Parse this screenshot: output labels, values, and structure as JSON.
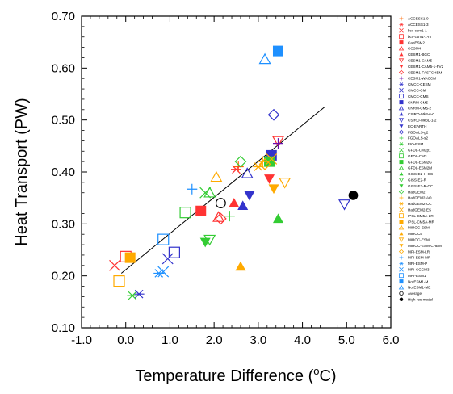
{
  "chart_data": {
    "type": "scatter",
    "xlabel": "Temperature Difference (",
    "xlabel_unit": "o",
    "xlabel_suffix": "C)",
    "ylabel": "Heat Transport (PW)",
    "xlim": [
      -1.0,
      6.0
    ],
    "ylim": [
      0.1,
      0.7
    ],
    "x_ticks": [
      -1.0,
      0.0,
      1.0,
      2.0,
      3.0,
      4.0,
      5.0,
      6.0
    ],
    "x_tick_labels": [
      "-1.0",
      "0.0",
      "1.0",
      "2.0",
      "3.0",
      "4.0",
      "5.0",
      "6.0"
    ],
    "y_ticks": [
      0.1,
      0.2,
      0.3,
      0.4,
      0.5,
      0.6,
      0.7
    ],
    "y_tick_labels": [
      "0.10",
      "0.20",
      "0.30",
      "0.40",
      "0.50",
      "0.60",
      "0.70"
    ],
    "grid": false,
    "legend_position": "right",
    "fit_line": {
      "x": [
        -0.1,
        4.5
      ],
      "y": [
        0.205,
        0.525
      ],
      "color": "#000000"
    },
    "series": [
      {
        "name": "ACCESS1-0",
        "marker": "plus",
        "color": "#ff6600",
        "x": 2.55,
        "y": 0.41
      },
      {
        "name": "ACCESS1-3",
        "marker": "asterisk",
        "color": "#ff3333",
        "x": 2.5,
        "y": 0.405
      },
      {
        "name": "bcc-csm1-1",
        "marker": "x",
        "color": "#ff3333",
        "x": -0.25,
        "y": 0.22
      },
      {
        "name": "bcc-csm1-1-m",
        "marker": "square-open",
        "color": "#ff3333",
        "x": 0.0,
        "y": 0.237
      },
      {
        "name": "CanESM2",
        "marker": "square-filled",
        "color": "#ff3333",
        "x": 1.7,
        "y": 0.325
      },
      {
        "name": "CCSM4",
        "marker": "triangle-up-open",
        "color": "#ff3333",
        "x": 2.1,
        "y": 0.313
      },
      {
        "name": "CESM1-BGC",
        "marker": "triangle-up-filled",
        "color": "#ff3333",
        "x": 2.45,
        "y": 0.34
      },
      {
        "name": "CESM1-CAM5",
        "marker": "triangle-down-open",
        "color": "#ff3333",
        "x": 3.45,
        "y": 0.46
      },
      {
        "name": "CESM1-CAM5-1-FV2",
        "marker": "triangle-down-filled",
        "color": "#ff3333",
        "x": 3.25,
        "y": 0.387
      },
      {
        "name": "CESM1-FASTCHEM",
        "marker": "diamond-open",
        "color": "#ff3333",
        "x": 2.15,
        "y": 0.31
      },
      {
        "name": "CESM1-WACCM",
        "marker": "plus",
        "color": "#6a0dad",
        "x": 3.45,
        "y": 0.455
      },
      {
        "name": "CMCC-CESM",
        "marker": "asterisk",
        "color": "#3333cc",
        "x": 0.3,
        "y": 0.165
      },
      {
        "name": "CMCC-CM",
        "marker": "x",
        "color": "#3333cc",
        "x": 0.95,
        "y": 0.233
      },
      {
        "name": "CMCC-CMS",
        "marker": "square-open",
        "color": "#3333cc",
        "x": 1.1,
        "y": 0.245
      },
      {
        "name": "CNRM-CM5",
        "marker": "square-filled",
        "color": "#3333cc",
        "x": 3.3,
        "y": 0.432
      },
      {
        "name": "CNRM-CM5-2",
        "marker": "triangle-up-open",
        "color": "#3333cc",
        "x": 2.75,
        "y": 0.397
      },
      {
        "name": "CSIRO-Mk3-6-0",
        "marker": "triangle-up-filled",
        "color": "#3333cc",
        "x": 2.65,
        "y": 0.335
      },
      {
        "name": "CSIRO-Mk3L-1-2",
        "marker": "triangle-down-open",
        "color": "#3333cc",
        "x": 4.95,
        "y": 0.338
      },
      {
        "name": "EC-EARTH",
        "marker": "triangle-down-filled",
        "color": "#3333cc",
        "x": 2.8,
        "y": 0.355
      },
      {
        "name": "FGOALS-g2",
        "marker": "diamond-open",
        "color": "#3333cc",
        "x": 3.35,
        "y": 0.51
      },
      {
        "name": "FGOALS-s2",
        "marker": "plus",
        "color": "#33cc33",
        "x": 2.35,
        "y": 0.315
      },
      {
        "name": "FIO-ESM",
        "marker": "asterisk",
        "color": "#33cc33",
        "x": 0.15,
        "y": 0.162
      },
      {
        "name": "GFDL-CM2p1",
        "marker": "x",
        "color": "#33cc33",
        "x": 1.8,
        "y": 0.36
      },
      {
        "name": "GFDL-CM3",
        "marker": "square-open",
        "color": "#33cc33",
        "x": 1.35,
        "y": 0.322
      },
      {
        "name": "GFDL-ESM2G",
        "marker": "square-filled",
        "color": "#33cc33",
        "x": 3.25,
        "y": 0.42
      },
      {
        "name": "GFDL-ESM2M",
        "marker": "triangle-up-open",
        "color": "#33cc33",
        "x": 1.9,
        "y": 0.36
      },
      {
        "name": "GISS-E2-H-CC",
        "marker": "triangle-up-filled",
        "color": "#33cc33",
        "x": 3.45,
        "y": 0.31
      },
      {
        "name": "GISS-E2-R",
        "marker": "triangle-down-open",
        "color": "#33cc33",
        "x": 1.9,
        "y": 0.27
      },
      {
        "name": "GISS-E2-R-CC",
        "marker": "triangle-down-filled",
        "color": "#33cc33",
        "x": 1.8,
        "y": 0.265
      },
      {
        "name": "HadGEM2",
        "marker": "diamond-open",
        "color": "#33cc33",
        "x": 2.6,
        "y": 0.42
      },
      {
        "name": "HadGEM2-AO",
        "marker": "plus",
        "color": "#ffaa00",
        "x": 3.1,
        "y": 0.42
      },
      {
        "name": "HadGEM2-CC",
        "marker": "asterisk",
        "color": "#ffaa00",
        "x": 3.0,
        "y": 0.41
      },
      {
        "name": "HadGEM2-ES",
        "marker": "x",
        "color": "#ffaa00",
        "x": 3.3,
        "y": 0.425
      },
      {
        "name": "IPSL-CM5A-LR",
        "marker": "square-open",
        "color": "#ffaa00",
        "x": -0.15,
        "y": 0.19
      },
      {
        "name": "IPSL-CM5A-MR",
        "marker": "square-filled",
        "color": "#ffaa00",
        "x": 0.1,
        "y": 0.235
      },
      {
        "name": "MIROC-ESM",
        "marker": "triangle-up-open",
        "color": "#ffaa00",
        "x": 2.05,
        "y": 0.39
      },
      {
        "name": "MIROC5",
        "marker": "triangle-up-filled",
        "color": "#ffaa00",
        "x": 2.6,
        "y": 0.218
      },
      {
        "name": "MIROC-ESM",
        "marker": "triangle-down-open",
        "color": "#ffaa00",
        "x": 3.6,
        "y": 0.38
      },
      {
        "name": "MIROC-ESM-CHEM",
        "marker": "triangle-down-filled",
        "color": "#ffaa00",
        "x": 3.35,
        "y": 0.368
      },
      {
        "name": "MPI-ESM-LR",
        "marker": "diamond-open",
        "color": "#ffaa00",
        "x": 3.15,
        "y": 0.415
      },
      {
        "name": "MPI-ESM-MR",
        "marker": "plus",
        "color": "#1e90ff",
        "x": 1.5,
        "y": 0.367
      },
      {
        "name": "MPI-ESM-P",
        "marker": "asterisk",
        "color": "#1e90ff",
        "x": 0.75,
        "y": 0.205
      },
      {
        "name": "MRI-CGCM3",
        "marker": "x",
        "color": "#1e90ff",
        "x": 0.85,
        "y": 0.208
      },
      {
        "name": "MRI-ESM1",
        "marker": "square-open",
        "color": "#1e90ff",
        "x": 0.85,
        "y": 0.27
      },
      {
        "name": "NorESM1-M",
        "marker": "square-filled",
        "color": "#1e90ff",
        "x": 3.45,
        "y": 0.633
      },
      {
        "name": "NorESM1-ME",
        "marker": "triangle-up-open",
        "color": "#1e90ff",
        "x": 3.15,
        "y": 0.617
      },
      {
        "name": "Average",
        "marker": "circle-open",
        "color": "#000000",
        "x": 2.15,
        "y": 0.34
      },
      {
        "name": "High-res model",
        "marker": "circle-filled",
        "color": "#000000",
        "x": 5.15,
        "y": 0.355
      }
    ]
  }
}
